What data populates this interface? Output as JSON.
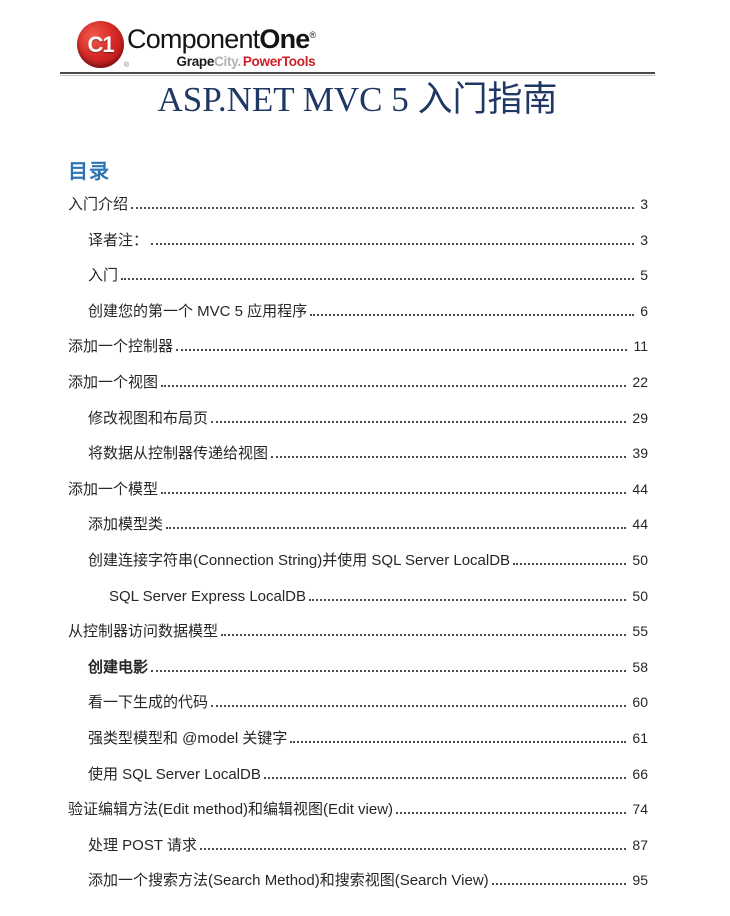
{
  "header": {
    "logo": {
      "badge_text": "C1",
      "registered_mark": "®",
      "brand_part1": "Component",
      "brand_part2": "One",
      "subbrand_part1": "Grape",
      "subbrand_part2": "City.",
      "subbrand_part3": "PowerTools"
    }
  },
  "document": {
    "title": "ASP.NET MVC 5 入门指南"
  },
  "toc": {
    "heading": "目录",
    "entries": [
      {
        "label": "入门介绍",
        "page": "3",
        "level": 1,
        "bold": false
      },
      {
        "label": "译者注：",
        "page": "3",
        "level": 2,
        "bold": false
      },
      {
        "label": "入门",
        "page": "5",
        "level": 2,
        "bold": false
      },
      {
        "label": "创建您的第一个 MVC 5 应用程序",
        "page": "6",
        "level": 2,
        "bold": false
      },
      {
        "label": "添加一个控制器",
        "page": "11",
        "level": 1,
        "bold": false
      },
      {
        "label": "添加一个视图",
        "page": "22",
        "level": 1,
        "bold": false
      },
      {
        "label": "修改视图和布局页",
        "page": "29",
        "level": 2,
        "bold": false
      },
      {
        "label": "将数据从控制器传递给视图",
        "page": "39",
        "level": 2,
        "bold": false
      },
      {
        "label": "添加一个模型",
        "page": "44",
        "level": 1,
        "bold": false
      },
      {
        "label": "添加模型类",
        "page": "44",
        "level": 2,
        "bold": false
      },
      {
        "label": "创建连接字符串(Connection String)并使用 SQL Server LocalDB",
        "page": "50",
        "level": 2,
        "bold": false
      },
      {
        "label": "SQL Server Express LocalDB",
        "page": "50",
        "level": 3,
        "bold": false
      },
      {
        "label": "从控制器访问数据模型",
        "page": "55",
        "level": 1,
        "bold": false
      },
      {
        "label": "创建电影",
        "page": "58",
        "level": 2,
        "bold": true
      },
      {
        "label": "看一下生成的代码",
        "page": "60",
        "level": 2,
        "bold": false
      },
      {
        "label": "强类型模型和 @model 关键字",
        "page": "61",
        "level": 2,
        "bold": false
      },
      {
        "label": "使用 SQL Server LocalDB",
        "page": "66",
        "level": 2,
        "bold": false
      },
      {
        "label": "验证编辑方法(Edit method)和编辑视图(Edit view)",
        "page": "74",
        "level": 1,
        "bold": false
      },
      {
        "label": "处理 POST 请求",
        "page": "87",
        "level": 2,
        "bold": false
      },
      {
        "label": "添加一个搜索方法(Search Method)和搜索视图(Search View)",
        "page": "95",
        "level": 2,
        "bold": false
      }
    ]
  },
  "colors": {
    "title_text": "#1F3864",
    "toc_heading_text": "#2E74B5",
    "body_text": "#262626",
    "logo_red": "#CB2026",
    "subbrand_gray": "#B3B3B3",
    "rule_dark": "#4C4C4C",
    "rule_light": "#C0C0C0",
    "leader_dots": "#4A4A4A"
  }
}
